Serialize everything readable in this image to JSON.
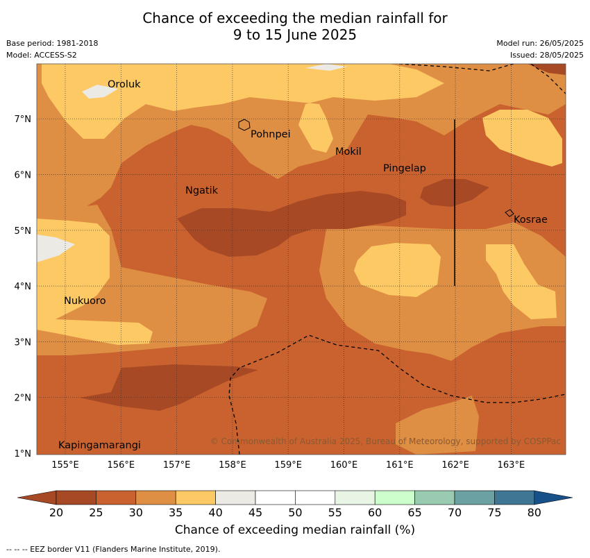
{
  "header": {
    "title_line1": "Chance of exceeding the median rainfall for",
    "title_line2": "9 to 15 June 2025",
    "base_period": "Base period: 1981-2018",
    "model": "Model: ACCESS-S2",
    "model_run": "Model run: 26/05/2025",
    "issued": "Issued: 28/05/2025"
  },
  "map": {
    "lon_ticks": [
      "155°E",
      "156°E",
      "157°E",
      "158°E",
      "159°E",
      "160°E",
      "161°E",
      "162°E",
      "163°E"
    ],
    "lat_ticks": [
      "1°N",
      "2°N",
      "3°N",
      "4°N",
      "5°N",
      "6°N",
      "7°N"
    ],
    "places": [
      "Oroluk",
      "Pohnpei",
      "Mokil",
      "Pingelap",
      "Ngatik",
      "Kosrae",
      "Nukuoro",
      "Kapingamarangi"
    ],
    "copyright": "© Commonwealth of Australia 2025, Bureau of Meteorology, supported by COSPPac"
  },
  "colorbar": {
    "ticks": [
      "20",
      "25",
      "30",
      "35",
      "40",
      "45",
      "50",
      "55",
      "60",
      "65",
      "70",
      "75",
      "80"
    ],
    "colors": [
      "#a84925",
      "#c9622f",
      "#df8f44",
      "#fdc965",
      "#eceae5",
      "#ffffff",
      "#ffffff",
      "#e8f5e4",
      "#ccffcc",
      "#98cbb0",
      "#6ba1a2",
      "#3f7694",
      "#18508a"
    ],
    "title": "Chance of exceeding median rainfall (%)"
  },
  "footnote": "--  --  -- EEZ border V11 (Flanders Marine Institute, 2019)."
}
